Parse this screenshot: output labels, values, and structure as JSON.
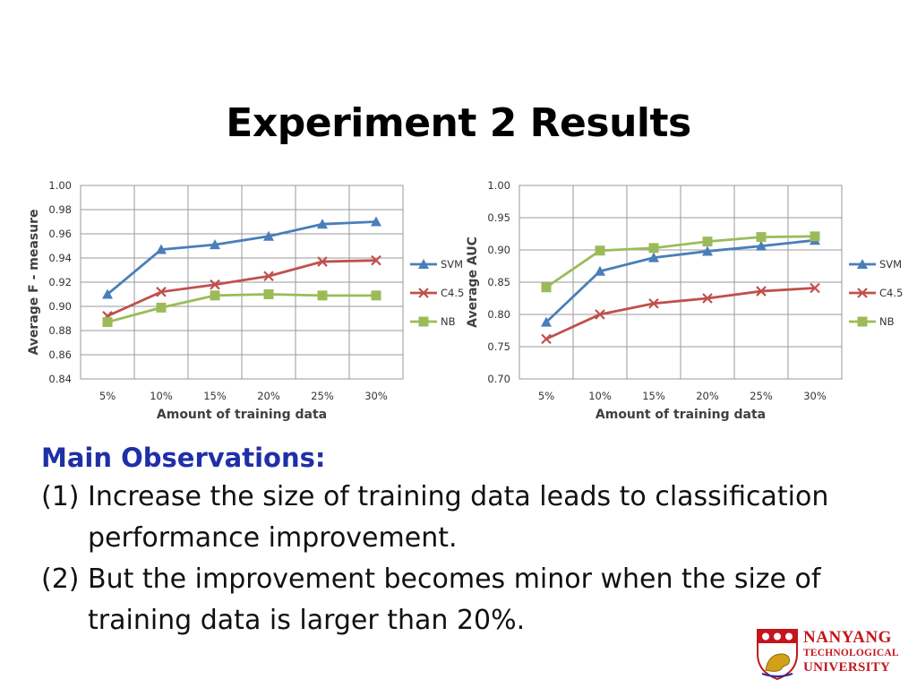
{
  "slide": {
    "title": "Experiment 2 Results",
    "observations": {
      "heading": "Main Observations:",
      "items": [
        {
          "num": "(1)",
          "text": "Increase the size of training data leads to classification performance improvement."
        },
        {
          "num": "(2)",
          "text": "But the improvement becomes minor when the size of training data is larger than 20%."
        }
      ]
    },
    "logo": {
      "line1": "NANYANG",
      "line2": "TECHNOLOGICAL",
      "line3": "UNIVERSITY"
    }
  },
  "chart_data": [
    {
      "type": "line",
      "xlabel": "Amount of training data",
      "ylabel": "Average F - measure",
      "categories": [
        "5%",
        "10%",
        "15%",
        "20%",
        "25%",
        "30%"
      ],
      "ylim": [
        0.84,
        1.0
      ],
      "yticks": [
        "0.84",
        "0.86",
        "0.88",
        "0.90",
        "0.92",
        "0.94",
        "0.96",
        "0.98",
        "1.00"
      ],
      "grid": true,
      "legend": "right",
      "series": [
        {
          "name": "SVM",
          "color": "#4a7ebb",
          "marker": "triangle",
          "values": [
            0.91,
            0.947,
            0.951,
            0.958,
            0.968,
            0.97
          ]
        },
        {
          "name": "C4.5",
          "color": "#c0504d",
          "marker": "x",
          "values": [
            0.892,
            0.912,
            0.918,
            0.925,
            0.937,
            0.938
          ]
        },
        {
          "name": "NB",
          "color": "#9bbb59",
          "marker": "square",
          "values": [
            0.887,
            0.899,
            0.909,
            0.91,
            0.909,
            0.909
          ]
        }
      ]
    },
    {
      "type": "line",
      "xlabel": "Amount of training data",
      "ylabel": "Average  AUC",
      "categories": [
        "5%",
        "10%",
        "15%",
        "20%",
        "25%",
        "30%"
      ],
      "ylim": [
        0.7,
        1.0
      ],
      "yticks": [
        "0.70",
        "0.75",
        "0.80",
        "0.85",
        "0.90",
        "0.95",
        "1.00"
      ],
      "grid": true,
      "legend": "right",
      "series": [
        {
          "name": "SVM",
          "color": "#4a7ebb",
          "marker": "triangle",
          "values": [
            0.788,
            0.867,
            0.888,
            0.898,
            0.906,
            0.915
          ]
        },
        {
          "name": "C4.5",
          "color": "#c0504d",
          "marker": "x",
          "values": [
            0.762,
            0.8,
            0.817,
            0.825,
            0.836,
            0.841
          ]
        },
        {
          "name": "NB",
          "color": "#9bbb59",
          "marker": "square",
          "values": [
            0.842,
            0.899,
            0.903,
            0.913,
            0.92,
            0.921
          ]
        }
      ]
    }
  ]
}
